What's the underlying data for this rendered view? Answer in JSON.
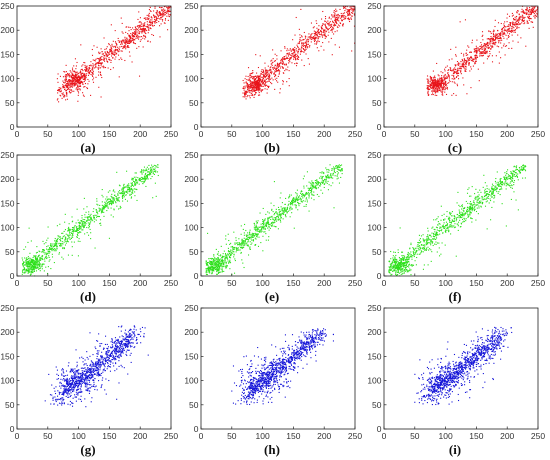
{
  "chart_data": [
    {
      "type": "scatter",
      "label": "(a)",
      "color": "#e8141a",
      "xlim": [
        0,
        250
      ],
      "ylim": [
        0,
        250
      ],
      "x_ticks": [
        "0",
        "50",
        "100",
        "150",
        "200",
        "250"
      ],
      "y_ticks": [
        "0",
        "50",
        "100",
        "150",
        "200",
        "250"
      ],
      "distribution": {
        "x_min": 65,
        "x_max": 250,
        "y_min": 50,
        "y_max": 250,
        "relation": "y ≈ x",
        "dense_cluster": [
          95,
          97
        ]
      }
    },
    {
      "type": "scatter",
      "label": "(b)",
      "color": "#e8141a",
      "xlim": [
        0,
        250
      ],
      "ylim": [
        0,
        250
      ],
      "x_ticks": [
        "0",
        "50",
        "100",
        "150",
        "200",
        "250"
      ],
      "y_ticks": [
        "0",
        "50",
        "100",
        "150",
        "200",
        "250"
      ],
      "distribution": {
        "x_min": 68,
        "x_max": 250,
        "y_min": 55,
        "y_max": 250,
        "relation": "y ≈ x",
        "dense_cluster": [
          90,
          88
        ]
      }
    },
    {
      "type": "scatter",
      "label": "(c)",
      "color": "#e8141a",
      "xlim": [
        0,
        250
      ],
      "ylim": [
        0,
        250
      ],
      "x_ticks": [
        "0",
        "50",
        "100",
        "150",
        "200",
        "250"
      ],
      "y_ticks": [
        "0",
        "50",
        "100",
        "150",
        "200",
        "250"
      ],
      "distribution": {
        "x_min": 70,
        "x_max": 250,
        "y_min": 65,
        "y_max": 250,
        "relation": "y ≈ x",
        "dense_cluster": [
          85,
          88
        ]
      }
    },
    {
      "type": "scatter",
      "label": "(d)",
      "color": "#2ee01c",
      "xlim": [
        0,
        250
      ],
      "ylim": [
        0,
        250
      ],
      "x_ticks": [
        "0",
        "50",
        "100",
        "150",
        "200",
        "250"
      ],
      "y_ticks": [
        "0",
        "50",
        "100",
        "150",
        "200",
        "250"
      ],
      "distribution": {
        "x_min": 8,
        "x_max": 230,
        "y_min": 0,
        "y_max": 230,
        "relation": "y ≈ x",
        "dense_cluster": [
          25,
          22
        ]
      }
    },
    {
      "type": "scatter",
      "label": "(e)",
      "color": "#2ee01c",
      "xlim": [
        0,
        250
      ],
      "ylim": [
        0,
        250
      ],
      "x_ticks": [
        "0",
        "50",
        "100",
        "150",
        "200",
        "250"
      ],
      "y_ticks": [
        "0",
        "50",
        "100",
        "150",
        "200",
        "250"
      ],
      "distribution": {
        "x_min": 8,
        "x_max": 230,
        "y_min": 0,
        "y_max": 230,
        "relation": "y ≈ x",
        "dense_cluster": [
          25,
          22
        ]
      }
    },
    {
      "type": "scatter",
      "label": "(f)",
      "color": "#2ee01c",
      "xlim": [
        0,
        250
      ],
      "ylim": [
        0,
        250
      ],
      "x_ticks": [
        "0",
        "50",
        "100",
        "150",
        "200",
        "250"
      ],
      "y_ticks": [
        "0",
        "50",
        "100",
        "150",
        "200",
        "250"
      ],
      "distribution": {
        "x_min": 8,
        "x_max": 230,
        "y_min": 0,
        "y_max": 230,
        "relation": "y ≈ x",
        "dense_cluster": [
          25,
          22
        ]
      }
    },
    {
      "type": "scatter",
      "label": "(g)",
      "color": "#1414d8",
      "xlim": [
        0,
        250
      ],
      "ylim": [
        0,
        250
      ],
      "x_ticks": [
        "0",
        "50",
        "100",
        "150",
        "200",
        "250"
      ],
      "y_ticks": [
        "0",
        "50",
        "100",
        "150",
        "200",
        "250"
      ],
      "distribution": {
        "x_min": 45,
        "x_max": 215,
        "y_min": 45,
        "y_max": 215,
        "relation": "y ≈ x",
        "dense_cluster": [
          100,
          100
        ]
      }
    },
    {
      "type": "scatter",
      "label": "(h)",
      "color": "#1414d8",
      "xlim": [
        0,
        250
      ],
      "ylim": [
        0,
        250
      ],
      "x_ticks": [
        "0",
        "50",
        "100",
        "150",
        "200",
        "250"
      ],
      "y_ticks": [
        "0",
        "50",
        "100",
        "150",
        "200",
        "250"
      ],
      "distribution": {
        "x_min": 50,
        "x_max": 215,
        "y_min": 50,
        "y_max": 210,
        "relation": "y ≈ x",
        "dense_cluster": [
          100,
          100
        ]
      }
    },
    {
      "type": "scatter",
      "label": "(i)",
      "color": "#1414d8",
      "xlim": [
        0,
        250
      ],
      "ylim": [
        0,
        250
      ],
      "x_ticks": [
        "0",
        "50",
        "100",
        "150",
        "200",
        "250"
      ],
      "y_ticks": [
        "0",
        "50",
        "100",
        "150",
        "200",
        "250"
      ],
      "distribution": {
        "x_min": 50,
        "x_max": 215,
        "y_min": 50,
        "y_max": 210,
        "relation": "y ≈ x",
        "dense_cluster": [
          100,
          100
        ]
      }
    }
  ]
}
